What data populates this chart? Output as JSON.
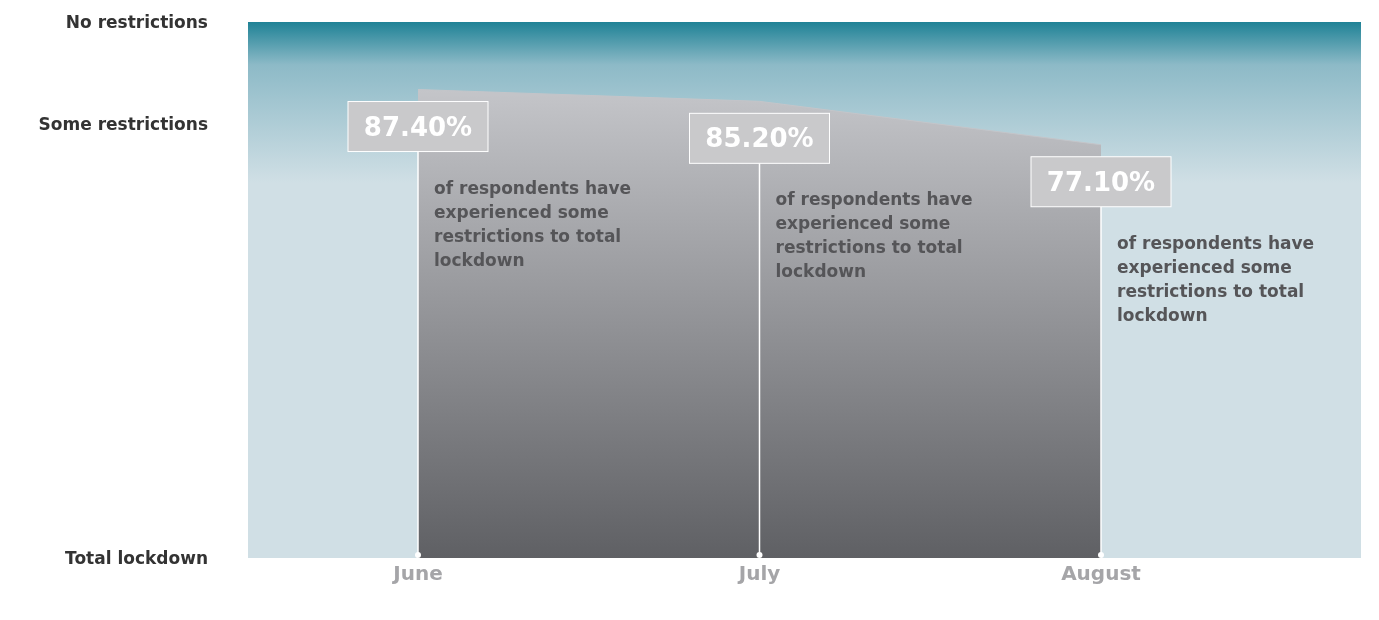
{
  "chart_data": {
    "type": "area",
    "categories": [
      "June",
      "July",
      "August"
    ],
    "series": [
      {
        "color": "#c4c5c9",
        "values": [
          87.4,
          85.2,
          77.1
        ],
        "value_labels": [
          "87.40%",
          "85.20%",
          "77.10%"
        ]
      }
    ],
    "ylim": [
      0,
      100
    ],
    "annotations": [
      "of respondents have experienced some restrictions to total lockdown",
      "of respondents have experienced some restrictions to total lockdown",
      "of respondents have experienced some restrictions to total lockdown",
      "No restrictions",
      "Some restrictions",
      "Total lockdown"
    ],
    "legend": false
  }
}
